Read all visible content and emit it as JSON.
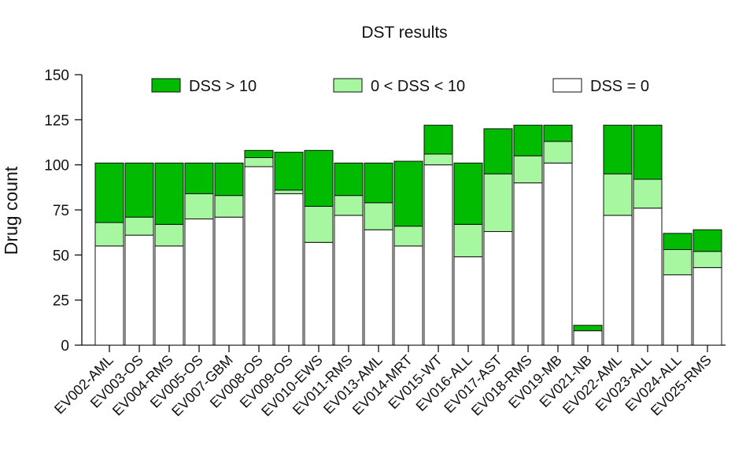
{
  "chart_data": {
    "type": "bar",
    "stacked": true,
    "title": "DST results",
    "xlabel": "",
    "ylabel": "Drug count",
    "ylim": [
      0,
      150
    ],
    "yticks": [
      0,
      25,
      50,
      75,
      100,
      125,
      150
    ],
    "grid": false,
    "legend_position": "top",
    "categories": [
      "EV002-AML",
      "EV003-OS",
      "EV004-RMS",
      "EV005-OS",
      "EV007-GBM",
      "EV008-OS",
      "EV009-OS",
      "EV010-EWS",
      "EV011-RMS",
      "EV013-AML",
      "EV014-MRT",
      "EV015-WT",
      "EV016-ALL",
      "EV017-AST",
      "EV018-RMS",
      "EV019-MB",
      "EV021-NB",
      "EV022-AML",
      "EV023-ALL",
      "EV024-ALL",
      "EV025-RMS"
    ],
    "series": [
      {
        "name": "DSS = 0",
        "color": "#ffffff",
        "values": [
          55,
          61,
          55,
          70,
          71,
          99,
          84,
          57,
          72,
          64,
          55,
          100,
          49,
          63,
          90,
          101,
          8,
          72,
          76,
          39,
          43
        ]
      },
      {
        "name": "0 < DSS < 10",
        "color": "#a6f7a0",
        "values": [
          13,
          10,
          12,
          14,
          12,
          5,
          2,
          20,
          11,
          15,
          11,
          6,
          18,
          32,
          15,
          12,
          0,
          23,
          16,
          14,
          9
        ]
      },
      {
        "name": "DSS > 10",
        "color": "#00bb00",
        "values": [
          33,
          30,
          34,
          17,
          18,
          4,
          21,
          31,
          18,
          22,
          36,
          16,
          34,
          25,
          17,
          9,
          3,
          27,
          30,
          9,
          12
        ]
      }
    ],
    "legend_order": [
      "DSS > 10",
      "0 < DSS < 10",
      "DSS = 0"
    ]
  }
}
